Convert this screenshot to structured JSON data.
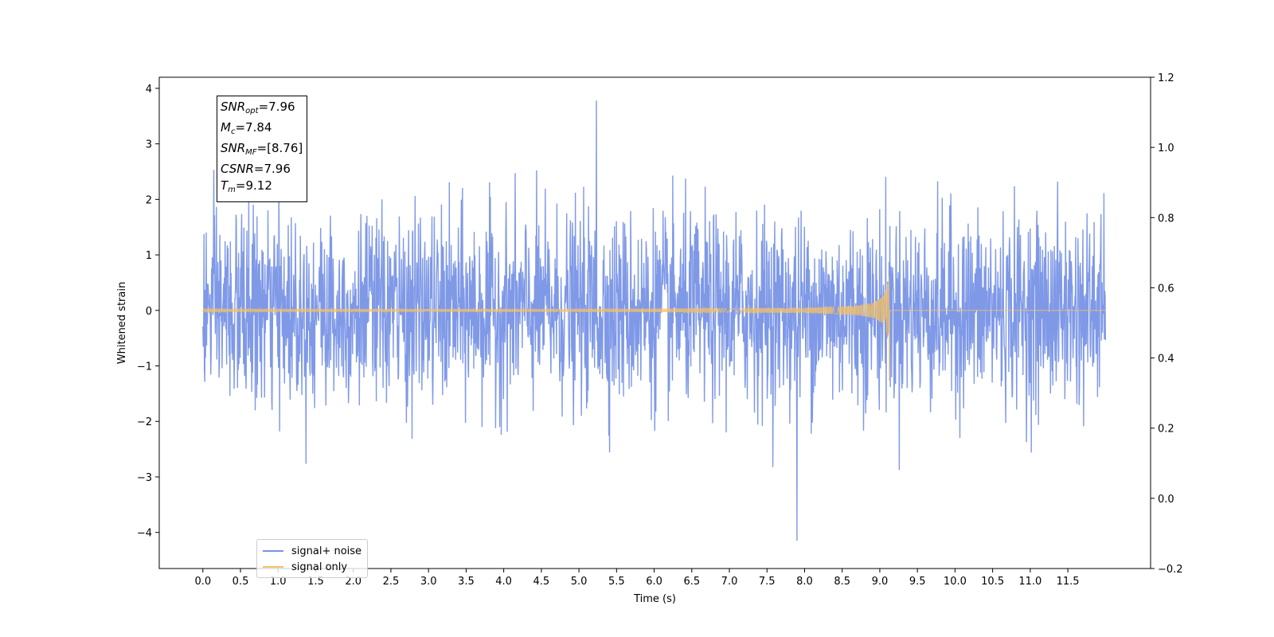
{
  "chart_data": {
    "type": "line",
    "xlabel": "Time (s)",
    "ylabel": "Whitened strain",
    "xlim": [
      -0.58,
      12.6
    ],
    "ylim": [
      -4.65,
      4.2
    ],
    "y2lim": [
      -0.2,
      1.2
    ],
    "x_ticks": [
      "0.0",
      "0.5",
      "1.0",
      "1.5",
      "2.0",
      "2.5",
      "3.0",
      "3.5",
      "4.0",
      "4.5",
      "5.0",
      "5.5",
      "6.0",
      "6.5",
      "7.0",
      "7.5",
      "8.0",
      "8.5",
      "9.0",
      "9.5",
      "10.0",
      "10.5",
      "11.0",
      "11.5"
    ],
    "y_ticks": [
      "4",
      "3",
      "2",
      "1",
      "0",
      "−1",
      "−2",
      "−3",
      "−4"
    ],
    "y2_ticks": [
      "1.2",
      "1.0",
      "0.8",
      "0.6",
      "0.4",
      "0.2",
      "0.0",
      "−0.2"
    ],
    "grid": false,
    "legend_position": "lower-left",
    "series": [
      {
        "name": "signal+ noise",
        "color": "#7893e6",
        "kind": "gaussian-noise",
        "x_start": 0.0,
        "x_end": 12.0,
        "noise_std": 0.85,
        "y_max": 3.78,
        "y_min": -4.15
      },
      {
        "name": "signal only",
        "color": "#f5c266",
        "kind": "chirp",
        "x_start": 0.0,
        "x_end": 12.0,
        "merger_time": 9.12,
        "peak_amplitude": 0.9,
        "min_value": -1.27
      }
    ],
    "annotation": {
      "lines": [
        {
          "sym": "SNR",
          "sub": "opt",
          "text": "=7.96"
        },
        {
          "sym": "M",
          "sub": "c",
          "text": "=7.84"
        },
        {
          "sym": "SNR",
          "sub": "MF",
          "text": "=[8.76]"
        },
        {
          "sym": "CSNR",
          "sub": "",
          "text": "=7.96"
        },
        {
          "sym": "T",
          "sub": "m",
          "text": "=9.12"
        }
      ]
    }
  }
}
